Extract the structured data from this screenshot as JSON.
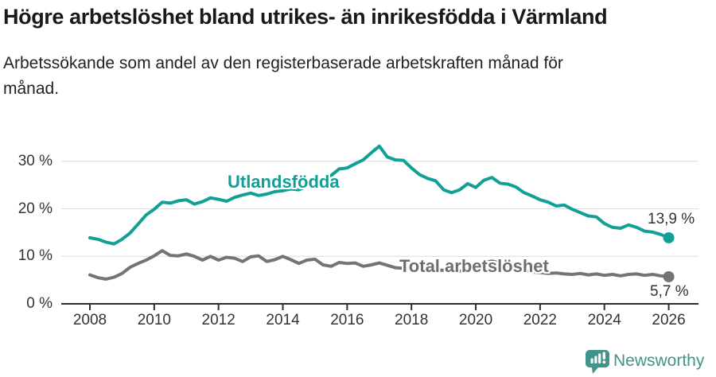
{
  "header": {
    "title": "Högre arbetslöshet bland utrikes- än inrikesfödda i Värmland",
    "subtitle": "Arbetssökande som andel av den registerbaserade arbetskraften månad för månad."
  },
  "footer": {
    "brand": "Newsworthy",
    "brand_icon": "newsworthy-bubble-chart-icon"
  },
  "colors": {
    "utlandsfodda_line": "#12a096",
    "total_line": "#747474",
    "brand_teal": "#42938a",
    "gridline": "#dcdcdc",
    "axis": "#2f2f2f",
    "axis_text": "#333333"
  },
  "chart_data": {
    "type": "line",
    "title": "Högre arbetslöshet bland utrikes- än inrikesfödda i Värmland",
    "subtitle": "Arbetssökande som andel av den registerbaserade arbetskraften månad för månad.",
    "grid": "horizontal",
    "legend_position": "inline-labels",
    "x_axis": {
      "ticks": [
        "2008",
        "2010",
        "2012",
        "2014",
        "2016",
        "2018",
        "2020",
        "2022",
        "2024",
        "2026"
      ],
      "range": [
        2007.1,
        2026.9
      ]
    },
    "y_axis": {
      "unit": "%",
      "range": [
        0,
        34
      ],
      "ticks": [
        {
          "value": 0,
          "label": "0 %"
        },
        {
          "value": 10,
          "label": "10 %"
        },
        {
          "value": 20,
          "label": "20 %"
        },
        {
          "value": 30,
          "label": "30 %"
        }
      ]
    },
    "x": [
      2008,
      2008.25,
      2008.5,
      2008.75,
      2009,
      2009.25,
      2009.5,
      2009.75,
      2010,
      2010.25,
      2010.5,
      2010.75,
      2011,
      2011.25,
      2011.5,
      2011.75,
      2012,
      2012.25,
      2012.5,
      2012.75,
      2013,
      2013.25,
      2013.5,
      2013.75,
      2014,
      2014.25,
      2014.5,
      2014.75,
      2015,
      2015.25,
      2015.5,
      2015.75,
      2016,
      2016.25,
      2016.5,
      2016.75,
      2017,
      2017.25,
      2017.5,
      2017.75,
      2018,
      2018.25,
      2018.5,
      2018.75,
      2019,
      2019.25,
      2019.5,
      2019.75,
      2020,
      2020.25,
      2020.5,
      2020.75,
      2021,
      2021.25,
      2021.5,
      2021.75,
      2022,
      2022.25,
      2022.5,
      2022.75,
      2023,
      2023.25,
      2023.5,
      2023.75,
      2024,
      2024.25,
      2024.5,
      2024.75,
      2025,
      2025.25,
      2025.5,
      2025.75,
      2026
    ],
    "series": [
      {
        "name": "Utlandsfödda",
        "color": "#12a096",
        "end_label": "13,9 %",
        "end_value": 13.9,
        "values": [
          13.9,
          13.6,
          13.0,
          12.6,
          13.6,
          14.9,
          16.8,
          18.7,
          19.9,
          21.4,
          21.2,
          21.7,
          21.9,
          21.0,
          21.5,
          22.3,
          22.0,
          21.6,
          22.4,
          22.9,
          23.3,
          22.8,
          23.1,
          23.6,
          23.8,
          24.2,
          24.0,
          24.8,
          25.3,
          25.9,
          27.0,
          28.4,
          28.6,
          29.5,
          30.3,
          31.8,
          33.2,
          30.9,
          30.3,
          30.2,
          28.6,
          27.2,
          26.4,
          25.9,
          24.0,
          23.4,
          24.0,
          25.3,
          24.5,
          26.0,
          26.6,
          25.4,
          25.2,
          24.6,
          23.4,
          22.7,
          21.9,
          21.4,
          20.6,
          20.8,
          19.9,
          19.2,
          18.5,
          18.3,
          16.9,
          16.1,
          15.9,
          16.6,
          16.1,
          15.3,
          15.1,
          14.6,
          13.9
        ]
      },
      {
        "name": "Total arbetslöshet",
        "color": "#747474",
        "end_label": "5,7 %",
        "end_value": 5.7,
        "values": [
          6.1,
          5.5,
          5.2,
          5.6,
          6.4,
          7.7,
          8.5,
          9.2,
          10.1,
          11.2,
          10.2,
          10.1,
          10.5,
          10.0,
          9.2,
          10.0,
          9.2,
          9.8,
          9.6,
          8.9,
          9.9,
          10.1,
          8.9,
          9.3,
          10.0,
          9.3,
          8.5,
          9.2,
          9.4,
          8.2,
          7.9,
          8.7,
          8.5,
          8.6,
          7.9,
          8.2,
          8.6,
          8.1,
          7.6,
          7.5,
          7.4,
          7.2,
          6.9,
          7.0,
          7.1,
          7.0,
          6.9,
          7.1,
          7.3,
          8.6,
          9.0,
          8.6,
          8.0,
          7.5,
          7.0,
          6.7,
          6.6,
          6.4,
          6.5,
          6.3,
          6.2,
          6.4,
          6.1,
          6.3,
          6.0,
          6.2,
          5.9,
          6.2,
          6.3,
          6.0,
          6.2,
          5.9,
          5.7
        ]
      }
    ]
  }
}
